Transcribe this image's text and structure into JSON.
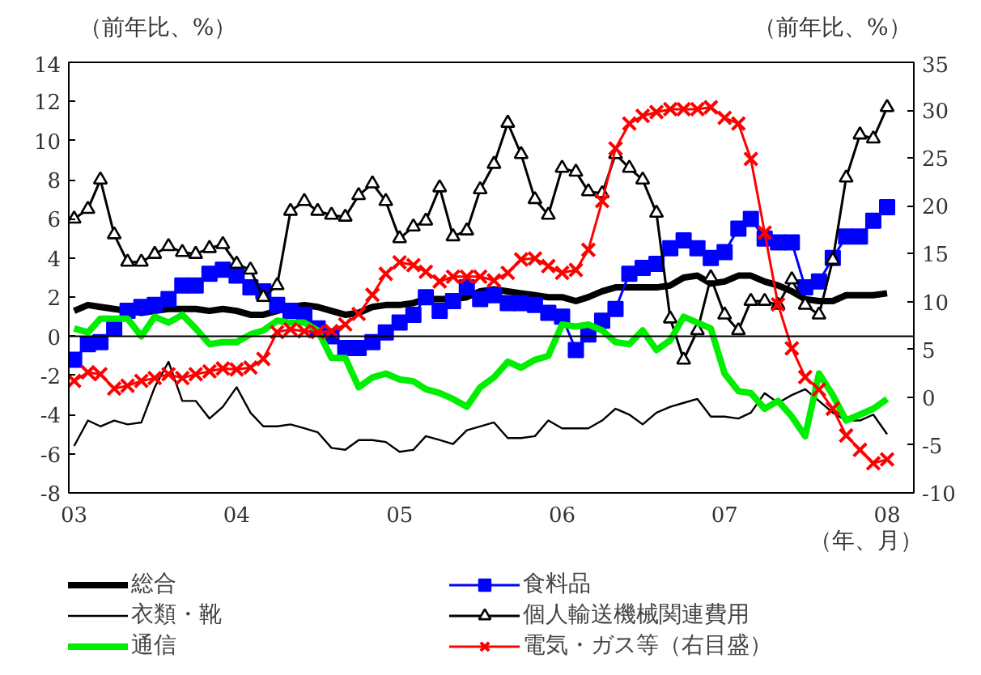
{
  "chart_data": {
    "type": "line",
    "ylabel": "（前年比、%）",
    "y2label": "（前年比、%）",
    "xlabel": "（年、月）",
    "x": [
      "2003-01",
      "2003-02",
      "2003-03",
      "2003-04",
      "2003-05",
      "2003-06",
      "2003-07",
      "2003-08",
      "2003-09",
      "2003-10",
      "2003-11",
      "2003-12",
      "2004-01",
      "2004-02",
      "2004-03",
      "2004-04",
      "2004-05",
      "2004-06",
      "2004-07",
      "2004-08",
      "2004-09",
      "2004-10",
      "2004-11",
      "2004-12",
      "2005-01",
      "2005-02",
      "2005-03",
      "2005-04",
      "2005-05",
      "2005-06",
      "2005-07",
      "2005-08",
      "2005-09",
      "2005-10",
      "2005-11",
      "2005-12",
      "2006-01",
      "2006-02",
      "2006-03",
      "2006-04",
      "2006-05",
      "2006-06",
      "2006-07",
      "2006-08",
      "2006-09",
      "2006-10",
      "2006-11",
      "2006-12",
      "2007-01",
      "2007-02",
      "2007-03",
      "2007-04",
      "2007-05",
      "2007-06",
      "2007-07",
      "2007-08",
      "2007-09",
      "2007-10",
      "2007-11",
      "2007-12",
      "2008-01"
    ],
    "xlim": [
      "2002-12-20",
      "2008-03-01"
    ],
    "xticks": [
      {
        "value": "2003-01",
        "label": "03"
      },
      {
        "value": "2004-01",
        "label": "04"
      },
      {
        "value": "2005-01",
        "label": "05"
      },
      {
        "value": "2006-01",
        "label": "06"
      },
      {
        "value": "2007-01",
        "label": "07"
      },
      {
        "value": "2008-01",
        "label": "08"
      }
    ],
    "ylim": [
      -8,
      14
    ],
    "yticks": [
      -8,
      -6,
      -4,
      -2,
      0,
      2,
      4,
      6,
      8,
      10,
      12,
      14
    ],
    "y2lim": [
      -10,
      35
    ],
    "y2ticks": [
      -10,
      -5,
      0,
      5,
      10,
      15,
      20,
      25,
      30,
      35
    ],
    "ref_lines": [
      {
        "axis": "y",
        "value": 0,
        "label": null,
        "color": "#000000"
      }
    ],
    "grid": false,
    "legend": "bottom",
    "series": [
      {
        "name": "総合",
        "color": "#000000",
        "marker": "none",
        "values": [
          1.3,
          1.6,
          1.5,
          1.4,
          1.3,
          1.2,
          1.3,
          1.4,
          1.4,
          1.4,
          1.3,
          1.4,
          1.3,
          1.1,
          1.1,
          1.3,
          1.5,
          1.6,
          1.5,
          1.3,
          1.1,
          1.2,
          1.5,
          1.6,
          1.6,
          1.7,
          1.9,
          1.9,
          1.9,
          2.0,
          2.3,
          2.4,
          2.3,
          2.2,
          2.1,
          2.0,
          2.0,
          1.8,
          2.0,
          2.3,
          2.5,
          2.5,
          2.5,
          2.5,
          2.6,
          3.0,
          3.1,
          2.7,
          2.8,
          3.1,
          3.1,
          2.8,
          2.6,
          2.3,
          1.9,
          1.8,
          1.8,
          2.1,
          2.1,
          2.1,
          2.2
        ]
      },
      {
        "name": "食料品",
        "color": "#0000ff",
        "marker": "square",
        "values": [
          -1.2,
          -0.4,
          -0.3,
          0.4,
          1.3,
          1.5,
          1.6,
          1.9,
          2.6,
          2.6,
          3.2,
          3.4,
          3.1,
          2.5,
          2.3,
          1.6,
          1.3,
          1.1,
          0.4,
          0.0,
          -0.6,
          -0.6,
          -0.3,
          0.2,
          0.7,
          1.1,
          2.0,
          1.3,
          1.8,
          2.5,
          1.9,
          2.1,
          1.7,
          1.7,
          1.6,
          1.2,
          1.0,
          -0.7,
          0.1,
          0.8,
          1.4,
          3.2,
          3.5,
          3.7,
          4.5,
          4.9,
          4.5,
          4.0,
          4.3,
          5.5,
          6.0,
          5.0,
          4.8,
          4.8,
          2.5,
          2.8,
          4.0,
          5.1,
          5.1,
          5.9,
          6.6
        ]
      },
      {
        "name": "衣類・靴",
        "color": "#000000",
        "marker": "none",
        "values": [
          -5.6,
          -4.3,
          -4.6,
          -4.3,
          -4.5,
          -4.4,
          -2.6,
          -1.3,
          -3.3,
          -3.3,
          -4.2,
          -3.6,
          -2.6,
          -3.9,
          -4.6,
          -4.6,
          -4.5,
          -4.7,
          -4.9,
          -5.7,
          -5.8,
          -5.3,
          -5.3,
          -5.4,
          -5.9,
          -5.8,
          -5.1,
          -5.3,
          -5.5,
          -4.8,
          -4.6,
          -4.4,
          -5.2,
          -5.2,
          -5.1,
          -4.3,
          -4.7,
          -4.7,
          -4.7,
          -4.3,
          -3.7,
          -4.0,
          -4.5,
          -3.9,
          -3.6,
          -3.4,
          -3.2,
          -4.1,
          -4.1,
          -4.2,
          -3.9,
          -2.9,
          -3.4,
          -3.0,
          -2.7,
          -3.3,
          -3.9,
          -4.3,
          -4.3,
          -4.0,
          -5.0
        ]
      },
      {
        "name": "個人輸送機械関連費用",
        "color": "#000000",
        "marker": "triangle",
        "values": [
          6.0,
          6.5,
          8.0,
          5.2,
          3.8,
          3.8,
          4.2,
          4.6,
          4.3,
          4.2,
          4.5,
          4.7,
          3.7,
          3.4,
          2.0,
          2.6,
          6.4,
          6.9,
          6.4,
          6.2,
          6.1,
          7.2,
          7.8,
          6.9,
          5.0,
          5.6,
          5.9,
          7.6,
          5.1,
          5.4,
          7.5,
          8.8,
          10.9,
          9.3,
          7.0,
          6.2,
          8.6,
          8.4,
          7.4,
          7.3,
          9.3,
          8.6,
          8.0,
          6.3,
          0.9,
          -1.2,
          0.3,
          3.0,
          1.1,
          0.3,
          1.8,
          1.8,
          1.6,
          2.9,
          1.6,
          1.1,
          3.9,
          8.1,
          10.3,
          10.1,
          11.7
        ]
      },
      {
        "name": "通信",
        "color": "#00ee00",
        "marker": "none",
        "values": [
          0.4,
          0.2,
          0.9,
          0.9,
          0.9,
          0.0,
          1.0,
          0.7,
          1.1,
          0.4,
          -0.4,
          -0.3,
          -0.3,
          0.1,
          0.3,
          0.8,
          0.7,
          0.7,
          0.3,
          -1.1,
          -1.1,
          -2.6,
          -2.1,
          -1.9,
          -2.2,
          -2.3,
          -2.7,
          -2.9,
          -3.2,
          -3.6,
          -2.6,
          -2.1,
          -1.3,
          -1.6,
          -1.2,
          -1.0,
          0.6,
          0.5,
          0.6,
          0.3,
          -0.3,
          -0.4,
          0.3,
          -0.7,
          -0.2,
          1.0,
          0.7,
          0.4,
          -1.9,
          -2.8,
          -2.9,
          -3.7,
          -3.3,
          -4.1,
          -5.1,
          -1.9,
          -3.0,
          -4.3,
          -4.0,
          -3.7,
          -3.2
        ]
      },
      {
        "name": "電気・ガス等（右目盛）",
        "color": "#ff0000",
        "marker": "cross",
        "axis": "y2",
        "values": [
          1.7,
          2.6,
          2.4,
          0.9,
          1.2,
          1.7,
          2.0,
          2.4,
          2.0,
          2.4,
          2.7,
          3.0,
          2.9,
          3.1,
          4.0,
          6.8,
          7.1,
          6.9,
          6.8,
          6.9,
          7.6,
          8.7,
          10.7,
          12.9,
          14.1,
          13.8,
          13.1,
          12.1,
          12.6,
          12.6,
          12.6,
          12.2,
          13.0,
          14.4,
          14.5,
          13.7,
          13.0,
          13.3,
          15.4,
          20.5,
          26.0,
          28.6,
          29.4,
          29.8,
          30.1,
          30.1,
          30.1,
          30.3,
          29.2,
          28.6,
          24.9,
          17.2,
          9.7,
          5.1,
          2.1,
          0.8,
          -1.2,
          -4.0,
          -5.5,
          -6.9,
          -6.5
        ]
      }
    ]
  }
}
